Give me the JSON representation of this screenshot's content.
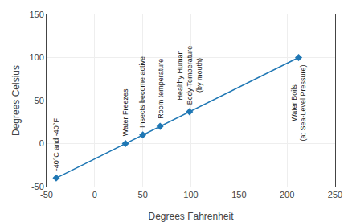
{
  "chart_data": {
    "type": "line",
    "x": [
      -40,
      32,
      50,
      68,
      98.6,
      212
    ],
    "values": [
      -40,
      0,
      10,
      20,
      37,
      100
    ],
    "marker": "diamond",
    "xlabel": "Degrees Fahrenheit",
    "ylabel": "Degrees Celsius",
    "xlim": [
      -50,
      250
    ],
    "ylim": [
      -50,
      150
    ],
    "xticks": [
      -50,
      0,
      50,
      100,
      150,
      200,
      250
    ],
    "yticks": [
      -50,
      0,
      50,
      100,
      150
    ],
    "grid": true,
    "annotations": [
      "-40°C and -40°F",
      "Water Freezes",
      "Insects become active",
      "Room temperature",
      "Healthy Human\nBody Temperature\n(by mouth)",
      "Water Boils\n(at Sea-Level Pressure)"
    ]
  }
}
